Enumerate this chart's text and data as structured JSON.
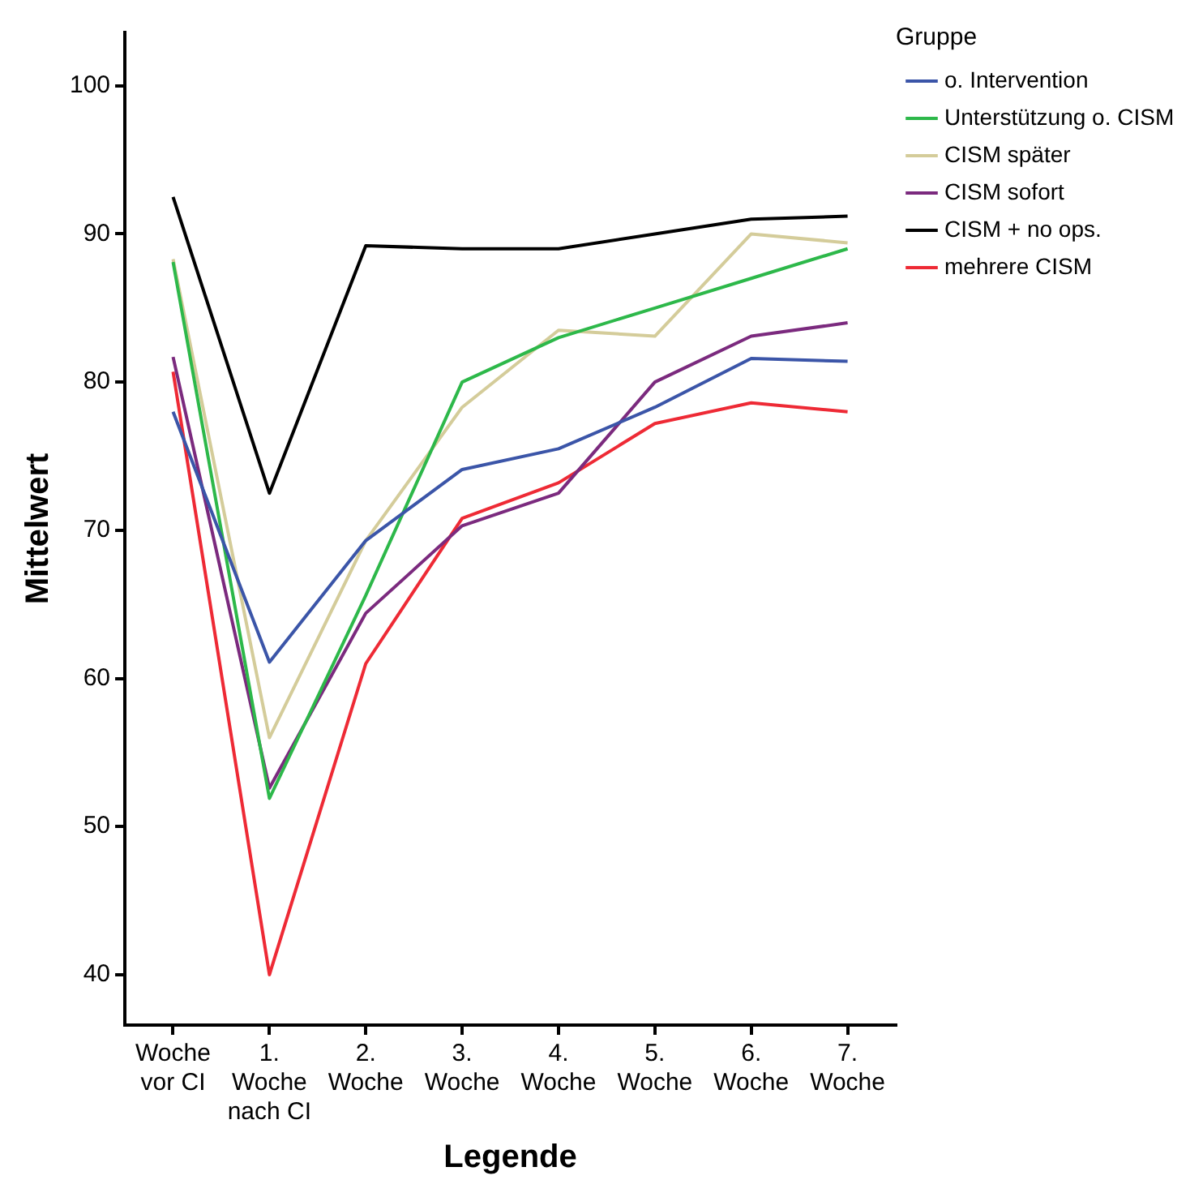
{
  "chart_data": {
    "type": "line",
    "xlabel": "Legende",
    "ylabel": "Mittelwert",
    "legend_title": "Gruppe",
    "categories": [
      "Woche vor CI",
      "1. Woche nach CI",
      "2. Woche",
      "3. Woche",
      "4. Woche",
      "5. Woche",
      "6. Woche",
      "7. Woche"
    ],
    "series": [
      {
        "name": "o. Intervention",
        "color": "#3b55a8",
        "values": [
          78.0,
          61.1,
          69.3,
          74.1,
          75.5,
          78.3,
          81.6,
          81.4
        ]
      },
      {
        "name": "Unterstützung o. CISM",
        "color": "#2db84a",
        "values": [
          88.1,
          51.9,
          65.6,
          80.0,
          83.0,
          85.0,
          87.0,
          89.0
        ]
      },
      {
        "name": "CISM später",
        "color": "#d4cc9a",
        "values": [
          88.3,
          56.0,
          69.3,
          78.3,
          83.5,
          83.1,
          90.0,
          89.4
        ]
      },
      {
        "name": "CISM sofort",
        "color": "#7b2a7e",
        "values": [
          81.7,
          52.6,
          64.4,
          70.3,
          72.5,
          80.0,
          83.1,
          84.0
        ]
      },
      {
        "name": "CISM + no ops.",
        "color": "#000000",
        "values": [
          92.5,
          72.5,
          89.2,
          89.0,
          89.0,
          90.0,
          91.0,
          91.2
        ]
      },
      {
        "name": "mehrere CISM",
        "color": "#ee2a35",
        "values": [
          80.7,
          40.0,
          61.0,
          70.8,
          73.2,
          77.2,
          78.6,
          78.0
        ]
      }
    ],
    "ylim": [
      36.6,
      103.6
    ],
    "yticks": [
      40,
      50,
      60,
      70,
      80,
      90,
      100
    ],
    "grid": false,
    "legend": "right",
    "marker": "none",
    "line_style": "solid"
  }
}
